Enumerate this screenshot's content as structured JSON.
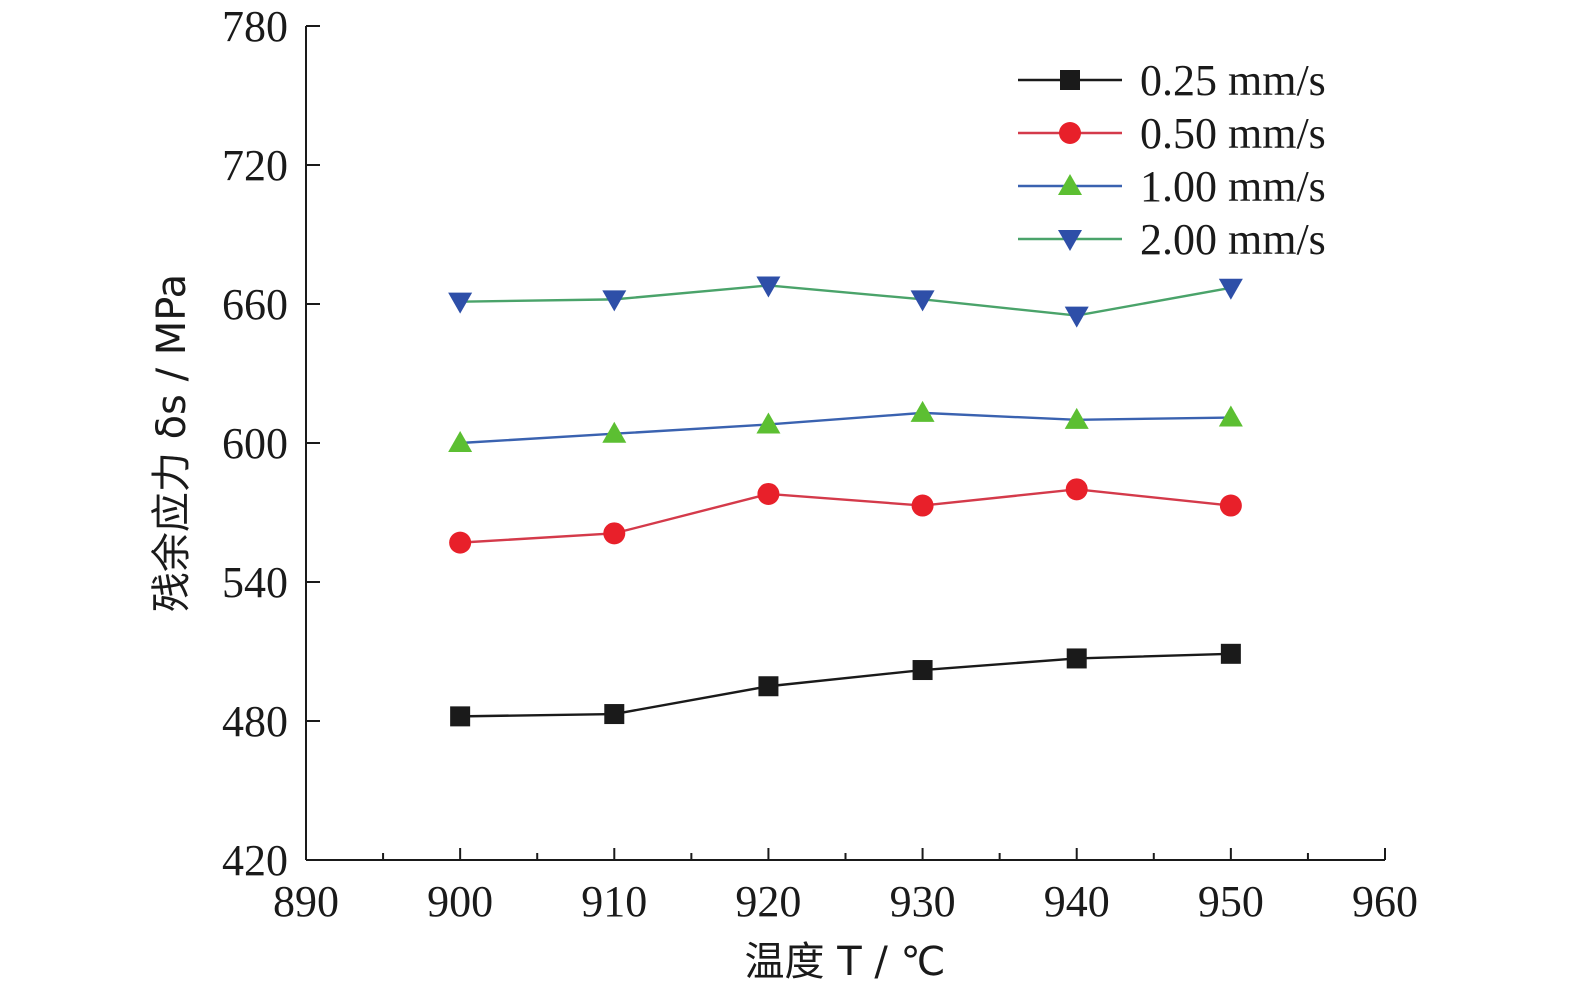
{
  "chart_data": {
    "type": "line",
    "xlabel": "温度 T / ℃",
    "ylabel": "残余应力 δs / MPa",
    "xlim": [
      890,
      960
    ],
    "ylim": [
      420,
      780
    ],
    "xticks": [
      "890",
      "900",
      "910",
      "920",
      "930",
      "940",
      "950",
      "960"
    ],
    "yticks": [
      "420",
      "480",
      "540",
      "600",
      "660",
      "720",
      "780"
    ],
    "x": [
      900,
      910,
      920,
      930,
      940,
      950
    ],
    "legend_position": "top-right",
    "grid": false,
    "series": [
      {
        "name": "0.25 mm/s",
        "values": [
          482,
          483,
          495,
          502,
          507,
          509
        ],
        "color": "#1a1a1a",
        "line_color": "#1a1a1a",
        "marker": "square"
      },
      {
        "name": "0.50 mm/s",
        "values": [
          557,
          561,
          578,
          573,
          580,
          573
        ],
        "color": "#e8202a",
        "line_color": "#d43a4a",
        "marker": "circle"
      },
      {
        "name": "1.00 mm/s",
        "values": [
          600,
          604,
          608,
          613,
          610,
          611
        ],
        "color": "#5cbf32",
        "line_color": "#3a62b0",
        "marker": "triangle-up"
      },
      {
        "name": "2.00 mm/s",
        "values": [
          661,
          662,
          668,
          662,
          655,
          667
        ],
        "color": "#2e4fa8",
        "line_color": "#4aa36a",
        "marker": "triangle-down"
      }
    ]
  }
}
